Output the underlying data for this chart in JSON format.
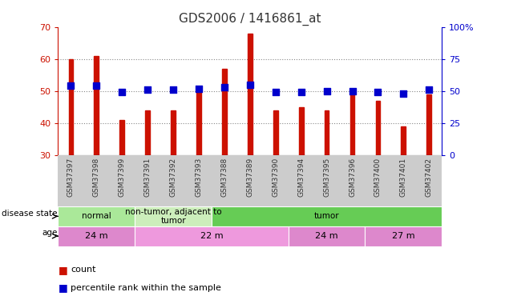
{
  "title": "GDS2006 / 1416861_at",
  "samples": [
    "GSM37397",
    "GSM37398",
    "GSM37399",
    "GSM37391",
    "GSM37392",
    "GSM37393",
    "GSM37388",
    "GSM37389",
    "GSM37390",
    "GSM37394",
    "GSM37395",
    "GSM37396",
    "GSM37400",
    "GSM37401",
    "GSM37402"
  ],
  "counts": [
    60,
    61,
    41,
    44,
    44,
    51,
    57,
    68,
    44,
    45,
    44,
    49,
    47,
    39,
    49
  ],
  "percentiles": [
    54,
    54,
    49,
    51,
    51,
    52,
    53,
    55,
    49,
    49,
    50,
    50,
    49,
    48,
    51
  ],
  "ymin": 30,
  "ymax": 70,
  "yticks": [
    30,
    40,
    50,
    60,
    70
  ],
  "y2ticks": [
    0,
    25,
    50,
    75,
    100
  ],
  "bar_color": "#cc1100",
  "dot_color": "#0000cc",
  "title_color": "#333333",
  "left_tick_color": "#cc1100",
  "right_tick_color": "#0000cc",
  "disease_state_groups": [
    {
      "label": "normal",
      "start": 0,
      "end": 3,
      "color": "#aae899"
    },
    {
      "label": "non-tumor, adjacent to\ntumor",
      "start": 3,
      "end": 6,
      "color": "#cceebb"
    },
    {
      "label": "tumor",
      "start": 6,
      "end": 15,
      "color": "#66cc55"
    }
  ],
  "age_groups": [
    {
      "label": "24 m",
      "start": 0,
      "end": 3,
      "color": "#dd88cc"
    },
    {
      "label": "22 m",
      "start": 3,
      "end": 9,
      "color": "#ee99dd"
    },
    {
      "label": "24 m",
      "start": 9,
      "end": 12,
      "color": "#dd88cc"
    },
    {
      "label": "27 m",
      "start": 12,
      "end": 15,
      "color": "#dd88cc"
    }
  ],
  "bar_width": 0.18,
  "dot_size": 28,
  "grid_color": "#888888",
  "background_color": "#ffffff",
  "plot_bg_color": "#ffffff",
  "sample_label_bg": "#cccccc",
  "border_color": "#000000"
}
